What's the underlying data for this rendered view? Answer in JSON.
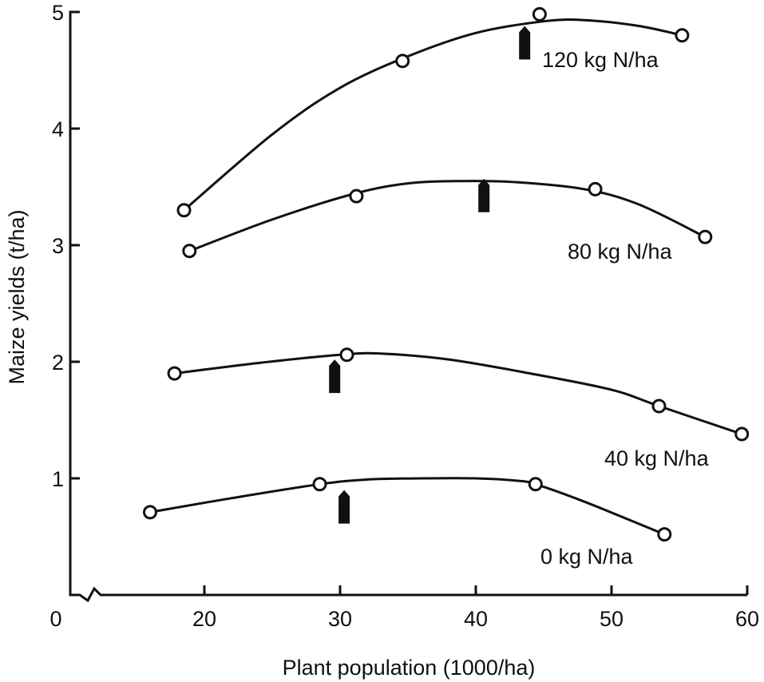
{
  "chart_data": {
    "type": "line",
    "title": "",
    "xlabel": "Plant population (1000/ha)",
    "ylabel": "Maize yields (t/ha)",
    "xlim": [
      0,
      60
    ],
    "ylim": [
      0,
      5
    ],
    "x_axis_break": true,
    "xticks": [
      0,
      20,
      30,
      40,
      50,
      60
    ],
    "xtick_labels": [
      "0",
      "20",
      "30",
      "40",
      "50",
      "60"
    ],
    "yticks": [
      1,
      2,
      3,
      4,
      5
    ],
    "ytick_labels": [
      "1",
      "2",
      "3",
      "4",
      "5"
    ],
    "grid": false,
    "marker": "open-circle",
    "line_color": "#111111",
    "series": [
      {
        "name": "120 kg N/ha",
        "points": [
          [
            18.5,
            3.3
          ],
          [
            34.6,
            4.58
          ],
          [
            44.7,
            4.98
          ],
          [
            55.2,
            4.8
          ]
        ],
        "curve": [
          [
            18.5,
            3.3
          ],
          [
            25,
            3.95
          ],
          [
            30,
            4.35
          ],
          [
            35,
            4.62
          ],
          [
            40,
            4.82
          ],
          [
            45,
            4.92
          ],
          [
            48,
            4.93
          ],
          [
            52,
            4.88
          ],
          [
            55.2,
            4.8
          ]
        ],
        "optimum_arrow": {
          "x": 43.6,
          "y": 4.88
        }
      },
      {
        "name": "80 kg N/ha",
        "points": [
          [
            18.9,
            2.95
          ],
          [
            31.2,
            3.42
          ],
          [
            48.8,
            3.48
          ],
          [
            56.9,
            3.07
          ]
        ],
        "curve": [
          [
            18.9,
            2.95
          ],
          [
            25,
            3.22
          ],
          [
            31,
            3.44
          ],
          [
            35,
            3.53
          ],
          [
            39,
            3.55
          ],
          [
            43,
            3.54
          ],
          [
            48,
            3.48
          ],
          [
            52,
            3.35
          ],
          [
            56.9,
            3.07
          ]
        ],
        "optimum_arrow": {
          "x": 40.6,
          "y": 3.57
        }
      },
      {
        "name": "40 kg N/ha",
        "points": [
          [
            17.8,
            1.9
          ],
          [
            30.5,
            2.06
          ],
          [
            53.5,
            1.62
          ],
          [
            59.6,
            1.38
          ]
        ],
        "curve": [
          [
            17.8,
            1.9
          ],
          [
            24,
            1.99
          ],
          [
            30,
            2.06
          ],
          [
            33,
            2.07
          ],
          [
            38,
            2.02
          ],
          [
            44,
            1.9
          ],
          [
            50,
            1.76
          ],
          [
            53.5,
            1.62
          ],
          [
            59.6,
            1.38
          ]
        ],
        "optimum_arrow": {
          "x": 29.6,
          "y": 2.02
        }
      },
      {
        "name": "0 kg N/ha",
        "points": [
          [
            16.0,
            0.71
          ],
          [
            28.5,
            0.95
          ],
          [
            44.4,
            0.95
          ],
          [
            53.9,
            0.52
          ]
        ],
        "curve": [
          [
            16,
            0.71
          ],
          [
            22,
            0.83
          ],
          [
            28.5,
            0.95
          ],
          [
            32,
            0.99
          ],
          [
            36,
            1.0
          ],
          [
            40,
            1.0
          ],
          [
            43,
            0.98
          ],
          [
            44.4,
            0.95
          ],
          [
            48,
            0.8
          ],
          [
            53.9,
            0.52
          ]
        ],
        "optimum_arrow": {
          "x": 30.3,
          "y": 0.9
        }
      }
    ]
  }
}
